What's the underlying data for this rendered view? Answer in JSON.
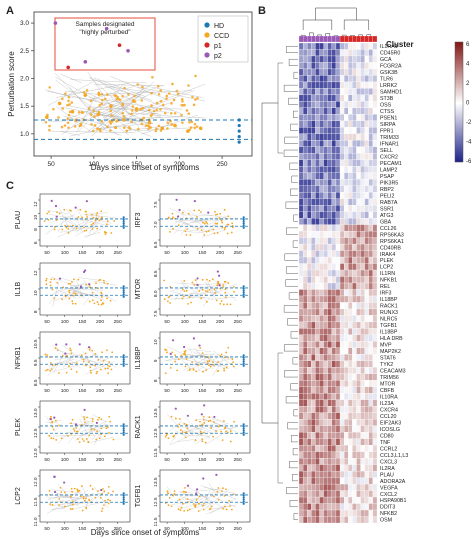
{
  "panels": {
    "a": "A",
    "b": "B",
    "c": "C"
  },
  "chart_data": [
    {
      "id": "A",
      "type": "scatter",
      "xlabel": "Days since onset of symptoms",
      "ylabel": "Perturbation score",
      "xlim": [
        30,
        285
      ],
      "ylim": [
        0.6,
        3.2
      ],
      "xticks": [
        "50",
        "100",
        "150",
        "200",
        "250"
      ],
      "yticks": [
        "1.0",
        "1.5",
        "2.0",
        "2.5",
        "3.0"
      ],
      "hlines": [
        0.9,
        1.25
      ],
      "annotation": "Samples designated\n\"highly perturbed\"",
      "legend": {
        "position": "top-right",
        "entries": [
          "HD",
          "CCD",
          "p1",
          "p2"
        ]
      },
      "series": [
        {
          "name": "HD",
          "color": "#1f77b4",
          "x": [
            270,
            270,
            270,
            270,
            270
          ],
          "y": [
            0.85,
            0.95,
            1.05,
            1.15,
            1.25
          ]
        },
        {
          "name": "CCD",
          "color": "#f5a623",
          "x": [
            45,
            60,
            75,
            90,
            105,
            120,
            135,
            150,
            165,
            180,
            195,
            210,
            225
          ],
          "y": [
            1.3,
            1.55,
            1.4,
            1.7,
            1.35,
            1.5,
            1.25,
            1.45,
            1.2,
            1.1,
            1.15,
            1.05,
            1.1
          ]
        },
        {
          "name": "p1",
          "color": "#d62728",
          "x": [
            70,
            130
          ],
          "y": [
            2.2,
            2.6
          ]
        },
        {
          "name": "p2",
          "color": "#9b59b6",
          "x": [
            55,
            90,
            115,
            140
          ],
          "y": [
            3.0,
            2.3,
            2.9,
            2.5
          ]
        }
      ]
    },
    {
      "id": "B",
      "type": "heatmap",
      "legend_title": "Cluster",
      "colorbar_ticks": [
        "6",
        "4",
        "2",
        "0",
        "-2",
        "-4",
        "-6"
      ],
      "rows": [
        "IL1RA1",
        "CD45R0",
        "GCA",
        "FCGR2A",
        "GSK3B",
        "TLR6",
        "LRRK2",
        "SAMHD1",
        "ST3B",
        "OSS",
        "CTSS",
        "PSEN1",
        "SIRPA",
        "FPR1",
        "TRIM33",
        "IFNAR1",
        "SELL",
        "CXCR2",
        "PECAM1",
        "LAMP2",
        "PSAP",
        "PIK3R5",
        "RBP2",
        "PELI2",
        "RAB7A",
        "SSR1",
        "ATG3",
        "GBA",
        "CCL26",
        "RPS6KA3",
        "RPS6KA1",
        "CD40RB",
        "IRAK4",
        "PLEK",
        "LCP2",
        "IL1RN",
        "NFKB1",
        "REL",
        "IRF3",
        "IL18BP",
        "RACK1",
        "RUNX3",
        "NLRC5",
        "TGFB1",
        "IL18BP",
        "HLA DRB",
        "MVP",
        "MAP2K2",
        "STAT6",
        "TYK2",
        "CEACAM3",
        "TRIM56",
        "MTOR",
        "CBFB",
        "IL10RA",
        "IL23A",
        "CXCR4",
        "CCL20",
        "EIF2AK3",
        "ICOSLG",
        "CD80",
        "TNF",
        "CCRL2",
        "CCL3,L1,L3",
        "CXCL3",
        "IL2RA",
        "PLAU",
        "ADORA2A",
        "VEGFA",
        "CXCL2",
        "HSPA90B1",
        "DDIT3",
        "NFKB2",
        "OSM"
      ],
      "col_groups": [
        {
          "label": "HD",
          "color": "#9b59b6",
          "count": 10
        },
        {
          "label": "CCD",
          "color": "#d62728",
          "count": 9
        }
      ]
    },
    {
      "id": "C",
      "type": "scatter",
      "xlabel": "Days since onset of symptoms",
      "xticks": [
        "50",
        "100",
        "150",
        "200",
        "250"
      ],
      "panels": [
        {
          "name": "PLAU",
          "yticks": [
            "6",
            "8",
            "10",
            "12"
          ]
        },
        {
          "name": "IRF3",
          "yticks": [
            "6.5",
            "7.0",
            "7.5"
          ]
        },
        {
          "name": "IL1B",
          "yticks": [
            "8",
            "10",
            "12"
          ]
        },
        {
          "name": "MTOR",
          "yticks": [
            "7.5",
            "8.0",
            "8.5"
          ]
        },
        {
          "name": "NFKB1",
          "yticks": [
            "8.5",
            "9.5",
            "10.5"
          ]
        },
        {
          "name": "IL18BP",
          "yticks": [
            "8",
            "9",
            "10"
          ]
        },
        {
          "name": "PLEK",
          "yticks": [
            "12.0",
            "12.5",
            "13.0"
          ]
        },
        {
          "name": "RACK1",
          "yticks": [
            "11.5",
            "12.5",
            "13.5"
          ]
        },
        {
          "name": "LCP2",
          "yticks": [
            "11.0",
            "11.5",
            "12.0"
          ]
        },
        {
          "name": "TGFB1",
          "yticks": [
            "11.5",
            "12.5",
            "13.5"
          ]
        }
      ]
    }
  ]
}
